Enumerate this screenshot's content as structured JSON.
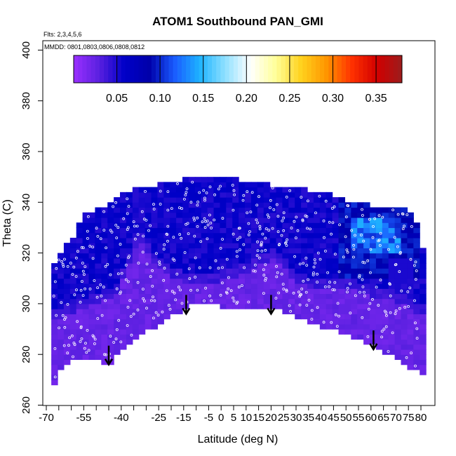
{
  "chart_data": {
    "type": "heatmap",
    "title": "ATOM1 Southbound PAN_GMI",
    "annotations": [
      "Flts: 2,3,4,5,6",
      "MMDD: 0801,0803,0806,0808,0812"
    ],
    "xlabel": "Latitude (deg N)",
    "ylabel": "Theta (C)",
    "xlim": [
      -70,
      82
    ],
    "ylim": [
      260,
      403
    ],
    "x_ticks": [
      -70,
      -65,
      -60,
      -55,
      -50,
      -45,
      -40,
      -35,
      -30,
      -25,
      -20,
      -15,
      -10,
      -5,
      0,
      5,
      10,
      15,
      20,
      25,
      30,
      35,
      40,
      45,
      50,
      55,
      60,
      65,
      70,
      75,
      80
    ],
    "x_tick_labels": [
      "-70",
      "",
      "",
      "-55",
      "",
      "",
      "-40",
      "",
      "",
      "-25",
      "",
      "-15",
      "",
      "-5",
      "0",
      "5",
      "10",
      "15",
      "20",
      "25",
      "30",
      "35",
      "40",
      "45",
      "50",
      "55",
      "60",
      "65",
      "70",
      "75",
      "80"
    ],
    "y_ticks": [
      260,
      280,
      300,
      320,
      340,
      360,
      380,
      400
    ],
    "y_tick_labels": [
      "260",
      "280",
      "300",
      "320",
      "340",
      "360",
      "380",
      "400"
    ],
    "colorbar": {
      "range": [
        0.0,
        0.38
      ],
      "ticks": [
        0.05,
        0.1,
        0.15,
        0.2,
        0.25,
        0.3,
        0.35
      ],
      "tick_labels": [
        "0.05",
        "0.10",
        "0.15",
        "0.20",
        "0.25",
        "0.30",
        "0.35"
      ],
      "colors": [
        "#9b30ff",
        "#5a20e0",
        "#0000c8",
        "#0000aa",
        "#1a5cff",
        "#1eb4ff",
        "#8fe0ff",
        "#ffffff",
        "#ffff99",
        "#ffd21e",
        "#ff9600",
        "#ff3200",
        "#d20000",
        "#9b1c1c"
      ]
    },
    "field": {
      "bottom_boundary": [
        [
          -68,
          265
        ],
        [
          -63,
          276
        ],
        [
          -55,
          279
        ],
        [
          -48,
          277
        ],
        [
          -45,
          276
        ],
        [
          -38,
          284
        ],
        [
          -25,
          292
        ],
        [
          -10,
          300
        ],
        [
          0,
          299
        ],
        [
          10,
          298.5
        ],
        [
          25,
          297
        ],
        [
          40,
          291
        ],
        [
          55,
          286
        ],
        [
          63,
          282
        ],
        [
          72,
          277
        ],
        [
          80,
          272
        ]
      ],
      "top_boundary": [
        [
          -68,
          315
        ],
        [
          -63,
          322
        ],
        [
          -60,
          325
        ],
        [
          -55,
          335
        ],
        [
          -48,
          338
        ],
        [
          -40,
          344
        ],
        [
          -30,
          346
        ],
        [
          -20,
          348
        ],
        [
          -15,
          349
        ],
        [
          -5,
          350
        ],
        [
          0,
          351
        ],
        [
          10,
          348
        ],
        [
          20,
          347
        ],
        [
          30,
          346
        ],
        [
          40,
          344
        ],
        [
          50,
          341
        ],
        [
          60,
          339
        ],
        [
          65,
          338
        ],
        [
          75,
          338
        ],
        [
          80,
          328
        ],
        [
          82,
          312
        ]
      ],
      "lower_layer_top": [
        [
          -68,
          293
        ],
        [
          -60,
          296
        ],
        [
          -50,
          300
        ],
        [
          -42,
          304
        ],
        [
          -38,
          312
        ],
        [
          -33,
          325
        ],
        [
          -25,
          314
        ],
        [
          -15,
          308
        ],
        [
          -5,
          308
        ],
        [
          5,
          310
        ],
        [
          15,
          315
        ],
        [
          22,
          318
        ],
        [
          30,
          308
        ],
        [
          40,
          306
        ],
        [
          50,
          307
        ],
        [
          55,
          304
        ],
        [
          65,
          302
        ],
        [
          72,
          300
        ],
        [
          80,
          296
        ]
      ],
      "enhanced_region": {
        "lat": [
          47,
          80
        ],
        "theta": [
          310,
          342
        ]
      },
      "enhanced_peak": {
        "lat": [
          52,
          72
        ],
        "theta": [
          320,
          334
        ]
      }
    },
    "arrows": [
      {
        "lat": -45,
        "theta_tip": 276
      },
      {
        "lat": -14,
        "theta_tip": 296
      },
      {
        "lat": 20,
        "theta_tip": 296
      },
      {
        "lat": 61,
        "theta_tip": 282
      }
    ]
  }
}
